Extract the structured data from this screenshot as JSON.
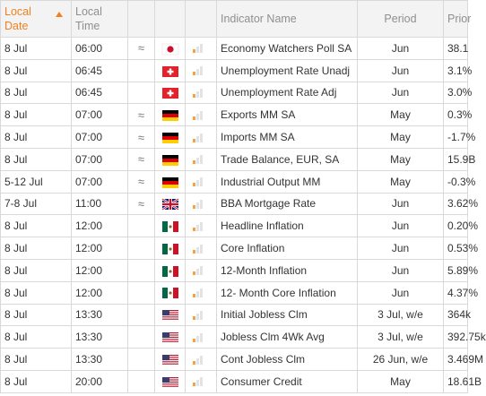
{
  "header": {
    "local_date": "Local Date",
    "local_time": "Local Time",
    "indicator": "Indicator Name",
    "period": "Period",
    "prior": "Prior"
  },
  "rows": [
    {
      "date": "8 Jul",
      "time": "06:00",
      "approx": "≈",
      "flag": "JP",
      "impact": 1,
      "indicator": "Economy Watchers Poll SA",
      "period": "Jun",
      "prior": "38.1"
    },
    {
      "date": "8 Jul",
      "time": "06:45",
      "approx": "",
      "flag": "CH",
      "impact": 1,
      "indicator": "Unemployment Rate Unadj",
      "period": "Jun",
      "prior": "3.1%"
    },
    {
      "date": "8 Jul",
      "time": "06:45",
      "approx": "",
      "flag": "CH",
      "impact": 1,
      "indicator": "Unemployment Rate Adj",
      "period": "Jun",
      "prior": "3.0%"
    },
    {
      "date": "8 Jul",
      "time": "07:00",
      "approx": "≈",
      "flag": "DE",
      "impact": 1,
      "indicator": "Exports MM SA",
      "period": "May",
      "prior": "0.3%"
    },
    {
      "date": "8 Jul",
      "time": "07:00",
      "approx": "≈",
      "flag": "DE",
      "impact": 1,
      "indicator": "Imports MM SA",
      "period": "May",
      "prior": "-1.7%"
    },
    {
      "date": "8 Jul",
      "time": "07:00",
      "approx": "≈",
      "flag": "DE",
      "impact": 1,
      "indicator": "Trade Balance, EUR, SA",
      "period": "May",
      "prior": "15.9B"
    },
    {
      "date": "5-12 Jul",
      "time": "07:00",
      "approx": "≈",
      "flag": "DE",
      "impact": 1,
      "indicator": "Industrial Output MM",
      "period": "May",
      "prior": "-0.3%"
    },
    {
      "date": "7-8 Jul",
      "time": "11:00",
      "approx": "≈",
      "flag": "GB",
      "impact": 1,
      "indicator": "BBA Mortgage Rate",
      "period": "Jun",
      "prior": "3.62%"
    },
    {
      "date": "8 Jul",
      "time": "12:00",
      "approx": "",
      "flag": "MX",
      "impact": 1,
      "indicator": "Headline Inflation",
      "period": "Jun",
      "prior": "0.20%"
    },
    {
      "date": "8 Jul",
      "time": "12:00",
      "approx": "",
      "flag": "MX",
      "impact": 1,
      "indicator": "Core Inflation",
      "period": "Jun",
      "prior": "0.53%"
    },
    {
      "date": "8 Jul",
      "time": "12:00",
      "approx": "",
      "flag": "MX",
      "impact": 1,
      "indicator": "12-Month Inflation",
      "period": "Jun",
      "prior": "5.89%"
    },
    {
      "date": "8 Jul",
      "time": "12:00",
      "approx": "",
      "flag": "MX",
      "impact": 1,
      "indicator": "12- Month Core Inflation",
      "period": "Jun",
      "prior": "4.37%"
    },
    {
      "date": "8 Jul",
      "time": "13:30",
      "approx": "",
      "flag": "US",
      "impact": 1,
      "indicator": "Initial Jobless Clm",
      "period": "3 Jul, w/e",
      "prior": "364k"
    },
    {
      "date": "8 Jul",
      "time": "13:30",
      "approx": "",
      "flag": "US",
      "impact": 1,
      "indicator": "Jobless Clm 4Wk Avg",
      "period": "3 Jul, w/e",
      "prior": "392.75k"
    },
    {
      "date": "8 Jul",
      "time": "13:30",
      "approx": "",
      "flag": "US",
      "impact": 1,
      "indicator": "Cont Jobless Clm",
      "period": "26 Jun, w/e",
      "prior": "3.469M"
    },
    {
      "date": "8 Jul",
      "time": "20:00",
      "approx": "",
      "flag": "US",
      "impact": 1,
      "indicator": "Consumer Credit",
      "period": "May",
      "prior": "18.61B"
    }
  ],
  "colors": {
    "accent": "#f0821e",
    "impact_on": "#f5a341",
    "impact_off": "#e3e3e3"
  }
}
